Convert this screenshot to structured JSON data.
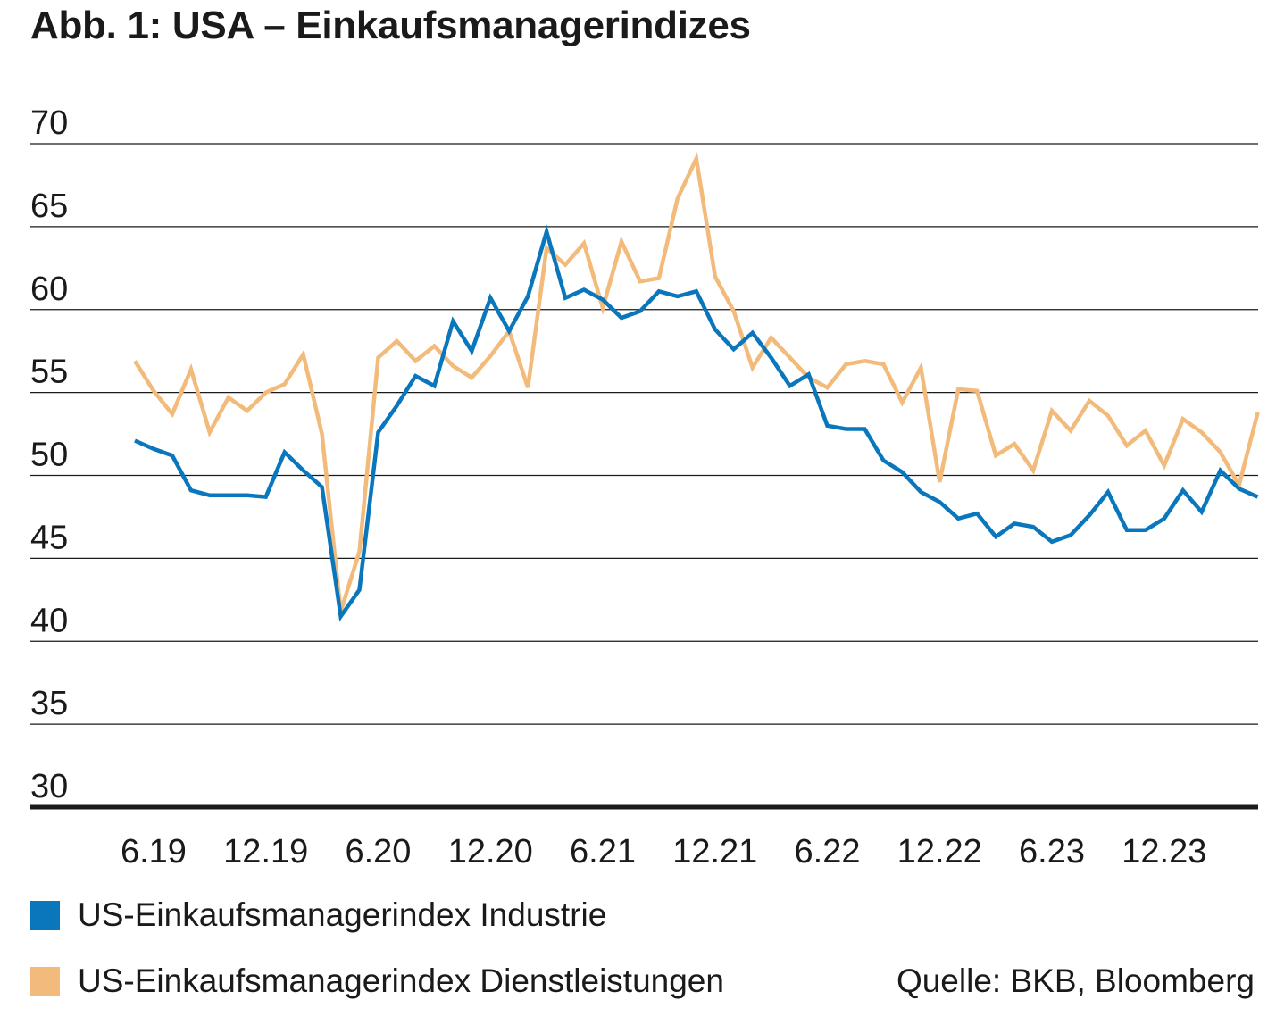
{
  "chart_data": {
    "type": "line",
    "title": "Abb. 1: USA – Einkaufsmanagerindizes",
    "xlabel": "",
    "ylabel": "",
    "ylim": [
      30,
      70
    ],
    "y_ticks": [
      "70",
      "65",
      "60",
      "55",
      "50",
      "45",
      "40",
      "35",
      "30"
    ],
    "y_tick_values": [
      70,
      65,
      60,
      55,
      50,
      45,
      40,
      35,
      30
    ],
    "x_tick_labels": [
      "6.19",
      "12.19",
      "6.20",
      "12.20",
      "6.21",
      "12.21",
      "6.22",
      "12.22",
      "6.23",
      "12.23"
    ],
    "x_tick_months": [
      "2019-06",
      "2019-12",
      "2020-06",
      "2020-12",
      "2021-06",
      "2021-12",
      "2022-06",
      "2022-12",
      "2023-06",
      "2023-12"
    ],
    "x": [
      "2019-05",
      "2019-06",
      "2019-07",
      "2019-08",
      "2019-09",
      "2019-10",
      "2019-11",
      "2019-12",
      "2020-01",
      "2020-02",
      "2020-03",
      "2020-04",
      "2020-05",
      "2020-06",
      "2020-07",
      "2020-08",
      "2020-09",
      "2020-10",
      "2020-11",
      "2020-12",
      "2021-01",
      "2021-02",
      "2021-03",
      "2021-04",
      "2021-05",
      "2021-06",
      "2021-07",
      "2021-08",
      "2021-09",
      "2021-10",
      "2021-11",
      "2021-12",
      "2022-01",
      "2022-02",
      "2022-03",
      "2022-04",
      "2022-05",
      "2022-06",
      "2022-07",
      "2022-08",
      "2022-09",
      "2022-10",
      "2022-11",
      "2022-12",
      "2023-01",
      "2023-02",
      "2023-03",
      "2023-04",
      "2023-05",
      "2023-06",
      "2023-07",
      "2023-08",
      "2023-09",
      "2023-10",
      "2023-11",
      "2023-12",
      "2024-01",
      "2024-02",
      "2024-03",
      "2024-04",
      "2024-05"
    ],
    "grid": true,
    "legend_position": "bottom-left",
    "series": [
      {
        "name": "US-Einkaufsmanagerindex Industrie",
        "color": "#0a77bd",
        "values": [
          52.1,
          51.6,
          51.2,
          49.1,
          48.8,
          48.8,
          48.8,
          48.7,
          51.4,
          50.3,
          49.3,
          41.5,
          43.1,
          52.6,
          54.2,
          56.0,
          55.4,
          59.3,
          57.5,
          60.7,
          58.7,
          60.8,
          64.7,
          60.7,
          61.2,
          60.6,
          59.5,
          59.9,
          61.1,
          60.8,
          61.1,
          58.8,
          57.6,
          58.6,
          57.1,
          55.4,
          56.1,
          53.0,
          52.8,
          52.8,
          50.9,
          50.2,
          49.0,
          48.4,
          47.4,
          47.7,
          46.3,
          47.1,
          46.9,
          46.0,
          46.4,
          47.6,
          49.0,
          46.7,
          46.7,
          47.4,
          49.1,
          47.8,
          50.3,
          49.2,
          48.7
        ]
      },
      {
        "name": "US-Einkaufsmanagerindex Dienstleistungen",
        "color": "#f2bb7b",
        "values": [
          56.9,
          55.1,
          53.7,
          56.4,
          52.6,
          54.7,
          53.9,
          55.0,
          55.5,
          57.3,
          52.5,
          41.8,
          45.4,
          57.1,
          58.1,
          56.9,
          57.8,
          56.6,
          55.9,
          57.2,
          58.7,
          55.3,
          63.7,
          62.7,
          64.0,
          60.1,
          64.1,
          61.7,
          61.9,
          66.7,
          69.1,
          62.0,
          59.9,
          56.5,
          58.3,
          57.1,
          55.9,
          55.3,
          56.7,
          56.9,
          56.7,
          54.4,
          56.5,
          49.6,
          55.2,
          55.1,
          51.2,
          51.9,
          50.3,
          53.9,
          52.7,
          54.5,
          53.6,
          51.8,
          52.7,
          50.6,
          53.4,
          52.6,
          51.4,
          49.4,
          53.8
        ]
      }
    ]
  },
  "legend": {
    "items": [
      {
        "label": "US-Einkaufsmanagerindex Industrie",
        "color": "#0a77bd"
      },
      {
        "label": "US-Einkaufsmanagerindex Dienstleistungen",
        "color": "#f2bb7b"
      }
    ]
  },
  "source": "Quelle: BKB, Bloomberg"
}
